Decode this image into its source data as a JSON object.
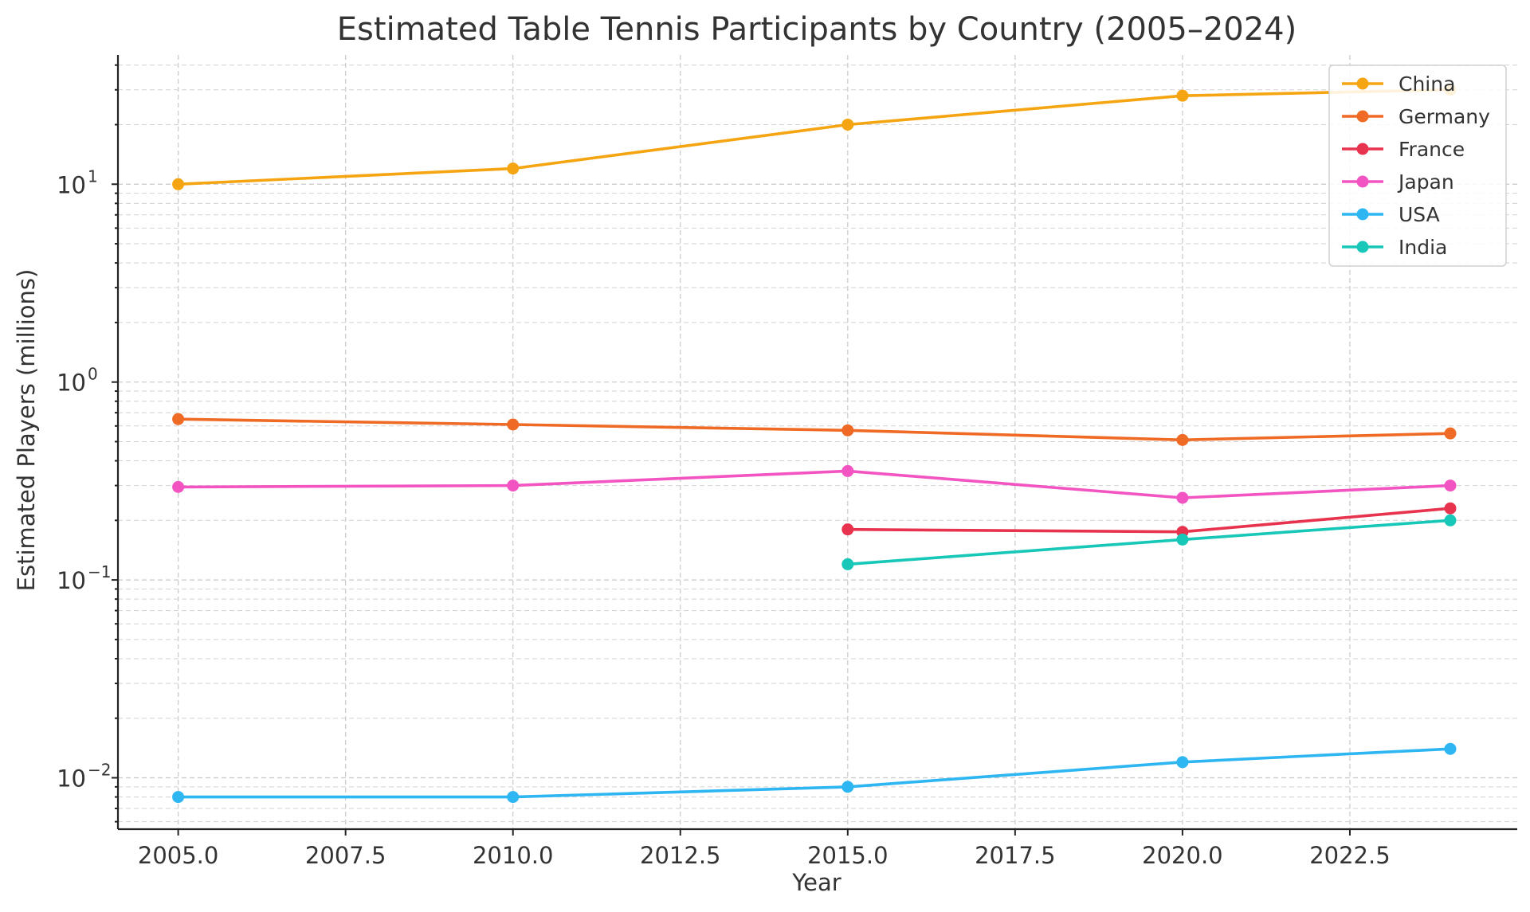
{
  "chart_data": {
    "type": "line",
    "title": "Estimated Table Tennis Participants by Country (2005–2024)",
    "xlabel": "Year",
    "ylabel": "Estimated Players (millions)",
    "xlim": [
      2004.1,
      2025.0
    ],
    "ylim": [
      0.0055,
      45
    ],
    "yscale": "log",
    "grid": true,
    "legend_position": "top-right",
    "x_ticks": [
      2005.0,
      2007.5,
      2010.0,
      2012.5,
      2015.0,
      2017.5,
      2020.0,
      2022.5
    ],
    "x_tick_labels": [
      "2005.0",
      "2007.5",
      "2010.0",
      "2012.5",
      "2015.0",
      "2017.5",
      "2020.0",
      "2022.5"
    ],
    "y_ticks": [
      {
        "value": 10,
        "base": "10",
        "exp": "1"
      },
      {
        "value": 1,
        "base": "10",
        "exp": "0"
      },
      {
        "value": 0.1,
        "base": "10",
        "exp": "−1"
      },
      {
        "value": 0.01,
        "base": "10",
        "exp": "−2"
      }
    ],
    "series": [
      {
        "name": "China",
        "color": "#F5A511",
        "points": [
          [
            2005,
            10
          ],
          [
            2010,
            12
          ],
          [
            2015,
            20
          ],
          [
            2020,
            28
          ],
          [
            2024,
            30
          ]
        ]
      },
      {
        "name": "Germany",
        "color": "#EE6A25",
        "points": [
          [
            2005,
            0.65
          ],
          [
            2010,
            0.61
          ],
          [
            2015,
            0.57
          ],
          [
            2020,
            0.51
          ],
          [
            2024,
            0.55
          ]
        ]
      },
      {
        "name": "France",
        "color": "#E8334F",
        "points": [
          [
            2015,
            0.18
          ],
          [
            2020,
            0.175
          ],
          [
            2024,
            0.23
          ]
        ]
      },
      {
        "name": "Japan",
        "color": "#F255C2",
        "points": [
          [
            2005,
            0.295
          ],
          [
            2010,
            0.3
          ],
          [
            2015,
            0.355
          ],
          [
            2020,
            0.26
          ],
          [
            2024,
            0.3
          ]
        ]
      },
      {
        "name": "USA",
        "color": "#2DB6F2",
        "points": [
          [
            2005,
            0.008
          ],
          [
            2010,
            0.008
          ],
          [
            2015,
            0.009
          ],
          [
            2020,
            0.012
          ],
          [
            2024,
            0.014
          ]
        ]
      },
      {
        "name": "India",
        "color": "#17C7B8",
        "points": [
          [
            2015,
            0.12
          ],
          [
            2020,
            0.16
          ],
          [
            2024,
            0.2
          ]
        ]
      }
    ]
  }
}
